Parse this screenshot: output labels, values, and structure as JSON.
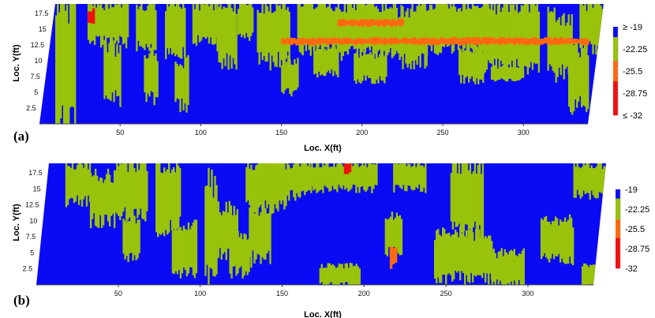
{
  "colors": {
    "blue": "#0a0af5",
    "green": "#99c20a",
    "orange": "#ff6a10",
    "red": "#f01010"
  },
  "chart_data": [
    {
      "type": "heatmap",
      "panel_label": "(a)",
      "xlabel": "Loc. X(ft)",
      "ylabel": "Loc. Y(ft)",
      "xticks": [
        "50",
        "100",
        "150",
        "200",
        "250",
        "300"
      ],
      "yticks": [
        "2.5",
        "5",
        "7.5",
        "10",
        "12.5",
        "15",
        "17.5"
      ],
      "xlim": [
        0,
        340
      ],
      "ylim": [
        0,
        19
      ],
      "colorbar": {
        "labels": [
          "≥ -19",
          "-22.25",
          "-25.5",
          "-28.75",
          "≤ -32"
        ],
        "values": [
          -19,
          -22.25,
          -25.5,
          -28.75,
          -32
        ]
      },
      "regions": [
        {
          "x": [
            5,
            10
          ],
          "y": [
            14,
            19
          ],
          "v": -19
        },
        {
          "x": [
            20,
            45
          ],
          "y": [
            13,
            19
          ],
          "v": -22.25
        },
        {
          "x": [
            30,
            40
          ],
          "y": [
            4,
            12
          ],
          "v": -22.25
        },
        {
          "x": [
            50,
            62
          ],
          "y": [
            12,
            19
          ],
          "v": -22.25
        },
        {
          "x": [
            55,
            63
          ],
          "y": [
            4,
            11
          ],
          "v": -22.25
        },
        {
          "x": [
            68,
            80
          ],
          "y": [
            11,
            19
          ],
          "v": -22.25
        },
        {
          "x": [
            74,
            82
          ],
          "y": [
            3,
            10
          ],
          "v": -22.25
        },
        {
          "x": [
            85,
            100
          ],
          "y": [
            13,
            19
          ],
          "v": -22.25
        },
        {
          "x": [
            100,
            112
          ],
          "y": [
            10,
            19
          ],
          "v": -22.25
        },
        {
          "x": [
            113,
            122
          ],
          "y": [
            14,
            19
          ],
          "v": -22.25
        },
        {
          "x": [
            125,
            145
          ],
          "y": [
            10,
            19
          ],
          "v": -22.25
        },
        {
          "x": [
            140,
            150
          ],
          "y": [
            5,
            10
          ],
          "v": -22.25
        },
        {
          "x": [
            150,
            175
          ],
          "y": [
            12,
            19
          ],
          "v": -22.25
        },
        {
          "x": [
            160,
            175
          ],
          "y": [
            8,
            12
          ],
          "v": -22.25
        },
        {
          "x": [
            175,
            212
          ],
          "y": [
            11,
            19
          ],
          "v": -22.25
        },
        {
          "x": [
            185,
            205
          ],
          "y": [
            7,
            11
          ],
          "v": -22.25
        },
        {
          "x": [
            212,
            230
          ],
          "y": [
            10,
            18
          ],
          "v": -22.25
        },
        {
          "x": [
            222,
            270
          ],
          "y": [
            12,
            19
          ],
          "v": -22.25
        },
        {
          "x": [
            250,
            265
          ],
          "y": [
            7,
            12
          ],
          "v": -22.25
        },
        {
          "x": [
            265,
            300
          ],
          "y": [
            9,
            19
          ],
          "v": -22.25
        },
        {
          "x": [
            270,
            290
          ],
          "y": [
            7,
            9
          ],
          "v": -22.25
        },
        {
          "x": [
            305,
            320
          ],
          "y": [
            8,
            17
          ],
          "v": -22.25
        },
        {
          "x": [
            318,
            330
          ],
          "y": [
            3,
            12
          ],
          "v": -22.25
        },
        {
          "x": [
            325,
            340
          ],
          "y": [
            12,
            19
          ],
          "v": -22.25
        },
        {
          "x": [
            0,
            12
          ],
          "y": [
            0,
            19
          ],
          "v": -22.25
        },
        {
          "x": [
            140,
            330
          ],
          "y": [
            12.6,
            13.6
          ],
          "v": -25.5
        },
        {
          "x": [
            175,
            215
          ],
          "y": [
            15.5,
            16.5
          ],
          "v": -25.5
        },
        {
          "x": [
            20,
            24
          ],
          "y": [
            16,
            18
          ],
          "v": -28.75
        }
      ]
    },
    {
      "type": "heatmap",
      "panel_label": "(b)",
      "xlabel": "Loc. X(ft)",
      "ylabel": "Loc. Y(ft)",
      "xticks": [
        "50",
        "100",
        "150",
        "200",
        "250",
        "300"
      ],
      "yticks": [
        "2.5",
        "5",
        "7.5",
        "10",
        "12.5",
        "15",
        "17.5"
      ],
      "xlim": [
        0,
        340
      ],
      "ylim": [
        0,
        19
      ],
      "colorbar": {
        "labels": [
          "-19",
          "-22.25",
          "-25.5",
          "-28.75",
          "-32"
        ],
        "values": [
          -19,
          -22.25,
          -25.5,
          -28.75,
          -32
        ]
      },
      "regions": [
        {
          "x": [
            10,
            25
          ],
          "y": [
            13,
            19
          ],
          "v": -22.25
        },
        {
          "x": [
            25,
            40
          ],
          "y": [
            10,
            17
          ],
          "v": -22.25
        },
        {
          "x": [
            40,
            60
          ],
          "y": [
            11,
            19
          ],
          "v": -22.25
        },
        {
          "x": [
            45,
            55
          ],
          "y": [
            4,
            10
          ],
          "v": -22.25
        },
        {
          "x": [
            65,
            80
          ],
          "y": [
            9,
            19
          ],
          "v": -22.25
        },
        {
          "x": [
            75,
            90
          ],
          "y": [
            2,
            9
          ],
          "v": -22.25
        },
        {
          "x": [
            95,
            102
          ],
          "y": [
            2,
            16
          ],
          "v": -22.25
        },
        {
          "x": [
            100,
            115
          ],
          "y": [
            5,
            12
          ],
          "v": -22.25
        },
        {
          "x": [
            110,
            122
          ],
          "y": [
            2,
            8
          ],
          "v": -22.25
        },
        {
          "x": [
            120,
            145
          ],
          "y": [
            12,
            19
          ],
          "v": -22.25
        },
        {
          "x": [
            122,
            135
          ],
          "y": [
            4,
            12
          ],
          "v": -22.25
        },
        {
          "x": [
            145,
            160
          ],
          "y": [
            14,
            19
          ],
          "v": -22.25
        },
        {
          "x": [
            160,
            200
          ],
          "y": [
            15,
            19
          ],
          "v": -22.25
        },
        {
          "x": [
            165,
            190
          ],
          "y": [
            0,
            3
          ],
          "v": -22.25
        },
        {
          "x": [
            205,
            215
          ],
          "y": [
            5,
            11
          ],
          "v": -22.25
        },
        {
          "x": [
            210,
            230
          ],
          "y": [
            15,
            19
          ],
          "v": -22.25
        },
        {
          "x": [
            235,
            270
          ],
          "y": [
            1,
            8
          ],
          "v": -22.25
        },
        {
          "x": [
            245,
            265
          ],
          "y": [
            8,
            19
          ],
          "v": -22.25
        },
        {
          "x": [
            270,
            290
          ],
          "y": [
            0,
            5
          ],
          "v": -22.25
        },
        {
          "x": [
            300,
            320
          ],
          "y": [
            4,
            10
          ],
          "v": -22.25
        },
        {
          "x": [
            320,
            340
          ],
          "y": [
            14,
            19
          ],
          "v": -22.25
        },
        {
          "x": [
            325,
            340
          ],
          "y": [
            0,
            3
          ],
          "v": -22.25
        },
        {
          "x": [
            208,
            211
          ],
          "y": [
            3,
            6
          ],
          "v": -25.5
        },
        {
          "x": [
            180,
            184
          ],
          "y": [
            17.5,
            19
          ],
          "v": -28.75
        }
      ]
    }
  ]
}
